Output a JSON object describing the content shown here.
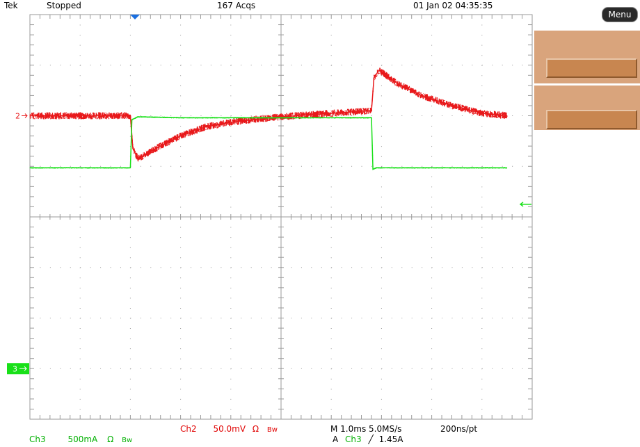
{
  "header": {
    "brand": "Tek",
    "state": "Stopped",
    "acquisitions": "167 Acqs",
    "datetime": "01 Jan 02 04:35:35"
  },
  "side_menu": {
    "menu_label": "Menu"
  },
  "markers": {
    "ch2_marker": "2",
    "ch3_marker": "3"
  },
  "colors": {
    "ch2": "#e8191b",
    "ch3": "#19e019",
    "grid": "#9a9a9a",
    "panel": "#d9a47c",
    "panel_button": "#c88650",
    "trigger_marker": "#1a6fe0"
  },
  "icons": {
    "trigger_position": "down-triangle-icon",
    "trigger_level": "left-arrow-icon"
  },
  "status": {
    "ch2_label": "Ch2",
    "ch2_scale": "50.0mV",
    "ch2_coupling": "Ω",
    "ch2_bw": "Bw",
    "ch3_label": "Ch3",
    "ch3_scale": "500mA",
    "ch3_coupling": "Ω",
    "ch3_bw": "Bw",
    "timebase": "M 1.0ms 5.0MS/s",
    "record": "200ns/pt",
    "trigger_prefix": "A",
    "trigger_channel": "Ch3",
    "trigger_slope": "╱",
    "trigger_level": "1.45A"
  },
  "chart_data": {
    "type": "line",
    "grid": {
      "divisions_x": 10,
      "divisions_y": 8,
      "minor_per_division": 5
    },
    "series": [
      {
        "name": "Ch2",
        "points": [
          [
            0,
            6.0
          ],
          [
            2.0,
            6.0
          ],
          [
            2.05,
            5.35
          ],
          [
            2.15,
            5.15
          ],
          [
            2.5,
            5.35
          ],
          [
            3.0,
            5.6
          ],
          [
            3.5,
            5.78
          ],
          [
            4.0,
            5.87
          ],
          [
            4.5,
            5.93
          ],
          [
            5.0,
            5.98
          ],
          [
            6.0,
            6.05
          ],
          [
            6.8,
            6.1
          ],
          [
            6.85,
            6.75
          ],
          [
            6.95,
            6.9
          ],
          [
            7.3,
            6.65
          ],
          [
            7.8,
            6.4
          ],
          [
            8.4,
            6.2
          ],
          [
            9.0,
            6.05
          ],
          [
            9.5,
            6.0
          ]
        ],
        "noise": 0.07
      },
      {
        "name": "Ch3",
        "points": [
          [
            0,
            4.97
          ],
          [
            2.0,
            4.97
          ],
          [
            2.03,
            5.92
          ],
          [
            2.15,
            5.98
          ],
          [
            3.0,
            5.96
          ],
          [
            6.8,
            5.96
          ],
          [
            6.83,
            4.94
          ],
          [
            6.9,
            4.97
          ],
          [
            9.5,
            4.97
          ]
        ],
        "noise": 0.015
      }
    ]
  }
}
